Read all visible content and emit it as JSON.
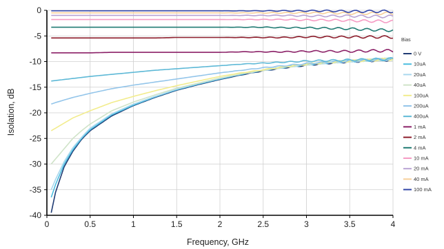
{
  "chart_data": {
    "type": "line",
    "title": "",
    "xlabel": "Frequency, GHz",
    "ylabel": "Isolation, dB",
    "xlim": [
      0,
      4
    ],
    "ylim": [
      -40,
      0
    ],
    "x_ticks": [
      "0",
      "0.5",
      "1",
      "1.5",
      "2",
      "2.5",
      "3",
      "3.5",
      "4"
    ],
    "y_ticks": [
      "0",
      "-5",
      "-10",
      "-15",
      "-20",
      "-25",
      "-30",
      "-35",
      "-40"
    ],
    "grid": true,
    "legend_title": "Bias",
    "legend_position": "right",
    "x": [
      0.05,
      0.1,
      0.2,
      0.3,
      0.4,
      0.5,
      0.75,
      1.0,
      1.25,
      1.5,
      1.75,
      2.0,
      2.25,
      2.5,
      2.75,
      3.0,
      3.25,
      3.5,
      3.75,
      4.0
    ],
    "series": [
      {
        "name": "0 V",
        "color": "#1f3b73",
        "values": [
          -39.5,
          -35.5,
          -30.5,
          -27.5,
          -25.2,
          -23.5,
          -20.6,
          -18.6,
          -17.0,
          -15.6,
          -14.5,
          -13.5,
          -12.6,
          -11.8,
          -11.2,
          -10.7,
          -10.3,
          -10.0,
          -9.8,
          -9.6
        ]
      },
      {
        "name": "10uA",
        "color": "#4bbde0",
        "values": [
          -36.5,
          -34.0,
          -30.0,
          -27.2,
          -25.0,
          -23.3,
          -20.4,
          -18.5,
          -16.9,
          -15.5,
          -14.4,
          -13.4,
          -12.5,
          -11.7,
          -11.1,
          -10.6,
          -10.2,
          -9.9,
          -9.7,
          -9.5
        ]
      },
      {
        "name": "20uA",
        "color": "#a9d8ee",
        "values": [
          -35.0,
          -33.0,
          -29.5,
          -26.8,
          -24.8,
          -23.0,
          -20.2,
          -18.3,
          -16.8,
          -15.4,
          -14.3,
          -13.3,
          -12.4,
          -11.7,
          -11.1,
          -10.6,
          -10.2,
          -9.9,
          -9.7,
          -9.5
        ]
      },
      {
        "name": "40uA",
        "color": "#cfe3c8",
        "values": [
          -30.0,
          -29.0,
          -27.0,
          -25.0,
          -23.5,
          -22.2,
          -19.6,
          -17.9,
          -16.5,
          -15.2,
          -14.2,
          -13.2,
          -12.4,
          -11.7,
          -11.1,
          -10.6,
          -10.2,
          -9.9,
          -9.7,
          -9.5
        ]
      },
      {
        "name": "100uA",
        "color": "#f2ec8c",
        "values": [
          -23.5,
          -23.0,
          -22.0,
          -21.0,
          -20.3,
          -19.6,
          -18.0,
          -16.8,
          -15.7,
          -14.7,
          -13.8,
          -12.9,
          -12.2,
          -11.6,
          -11.0,
          -10.5,
          -10.1,
          -9.9,
          -9.7,
          -9.5
        ]
      },
      {
        "name": "200uA",
        "color": "#93c5ea",
        "values": [
          -18.3,
          -18.0,
          -17.5,
          -17.0,
          -16.6,
          -16.2,
          -15.3,
          -14.6,
          -14.0,
          -13.4,
          -12.8,
          -12.2,
          -11.7,
          -11.2,
          -10.8,
          -10.4,
          -10.1,
          -9.9,
          -9.7,
          -9.5
        ]
      },
      {
        "name": "400uA",
        "color": "#5cb8d6",
        "values": [
          -13.8,
          -13.7,
          -13.5,
          -13.3,
          -13.1,
          -12.9,
          -12.5,
          -12.1,
          -11.7,
          -11.4,
          -11.1,
          -10.8,
          -10.5,
          -10.3,
          -10.1,
          -9.9,
          -9.8,
          -9.7,
          -9.6,
          -9.5
        ]
      },
      {
        "name": "1 mA",
        "color": "#8a1f66",
        "values": [
          -8.3,
          -8.3,
          -8.3,
          -8.3,
          -8.3,
          -8.3,
          -8.2,
          -8.2,
          -8.2,
          -8.2,
          -8.2,
          -8.2,
          -8.1,
          -8.1,
          -8.1,
          -8.0,
          -8.0,
          -8.0,
          -7.9,
          -7.9
        ]
      },
      {
        "name": "2 mA",
        "color": "#8c1c2b",
        "values": [
          -5.4,
          -5.4,
          -5.4,
          -5.4,
          -5.4,
          -5.4,
          -5.4,
          -5.4,
          -5.4,
          -5.3,
          -5.3,
          -5.3,
          -5.3,
          -5.3,
          -5.3,
          -5.2,
          -5.2,
          -5.2,
          -5.2,
          -5.2
        ]
      },
      {
        "name": "4 mA",
        "color": "#1f7a72",
        "values": [
          -3.3,
          -3.3,
          -3.3,
          -3.3,
          -3.3,
          -3.3,
          -3.3,
          -3.3,
          -3.3,
          -3.3,
          -3.3,
          -3.3,
          -3.3,
          -3.3,
          -3.4,
          -3.4,
          -3.5,
          -3.6,
          -3.8,
          -3.9
        ]
      },
      {
        "name": "10 mA",
        "color": "#f59ac3",
        "values": [
          -1.8,
          -1.8,
          -1.8,
          -1.8,
          -1.8,
          -1.8,
          -1.8,
          -1.8,
          -1.8,
          -1.8,
          -1.8,
          -1.8,
          -1.8,
          -1.8,
          -1.8,
          -1.9,
          -1.9,
          -2.0,
          -2.1,
          -2.2
        ]
      },
      {
        "name": "20 mA",
        "color": "#b9a3d4",
        "values": [
          -1.0,
          -1.0,
          -1.0,
          -1.0,
          -1.0,
          -1.0,
          -1.0,
          -1.0,
          -1.0,
          -1.0,
          -1.0,
          -1.0,
          -1.0,
          -1.0,
          -1.0,
          -1.1,
          -1.1,
          -1.1,
          -1.2,
          -1.2
        ]
      },
      {
        "name": "40 mA",
        "color": "#f7cf99",
        "values": [
          -0.5,
          -0.5,
          -0.5,
          -0.5,
          -0.5,
          -0.5,
          -0.5,
          -0.5,
          -0.5,
          -0.5,
          -0.5,
          -0.5,
          -0.5,
          -0.5,
          -0.5,
          -0.5,
          -0.5,
          -0.6,
          -0.6,
          -0.6
        ]
      },
      {
        "name": "100 mA",
        "color": "#3246a8",
        "values": [
          -0.1,
          -0.1,
          -0.1,
          -0.1,
          -0.1,
          -0.1,
          -0.1,
          -0.1,
          -0.1,
          -0.1,
          -0.1,
          -0.1,
          -0.1,
          -0.1,
          -0.1,
          -0.1,
          -0.1,
          -0.2,
          -0.2,
          -0.2
        ]
      }
    ]
  }
}
